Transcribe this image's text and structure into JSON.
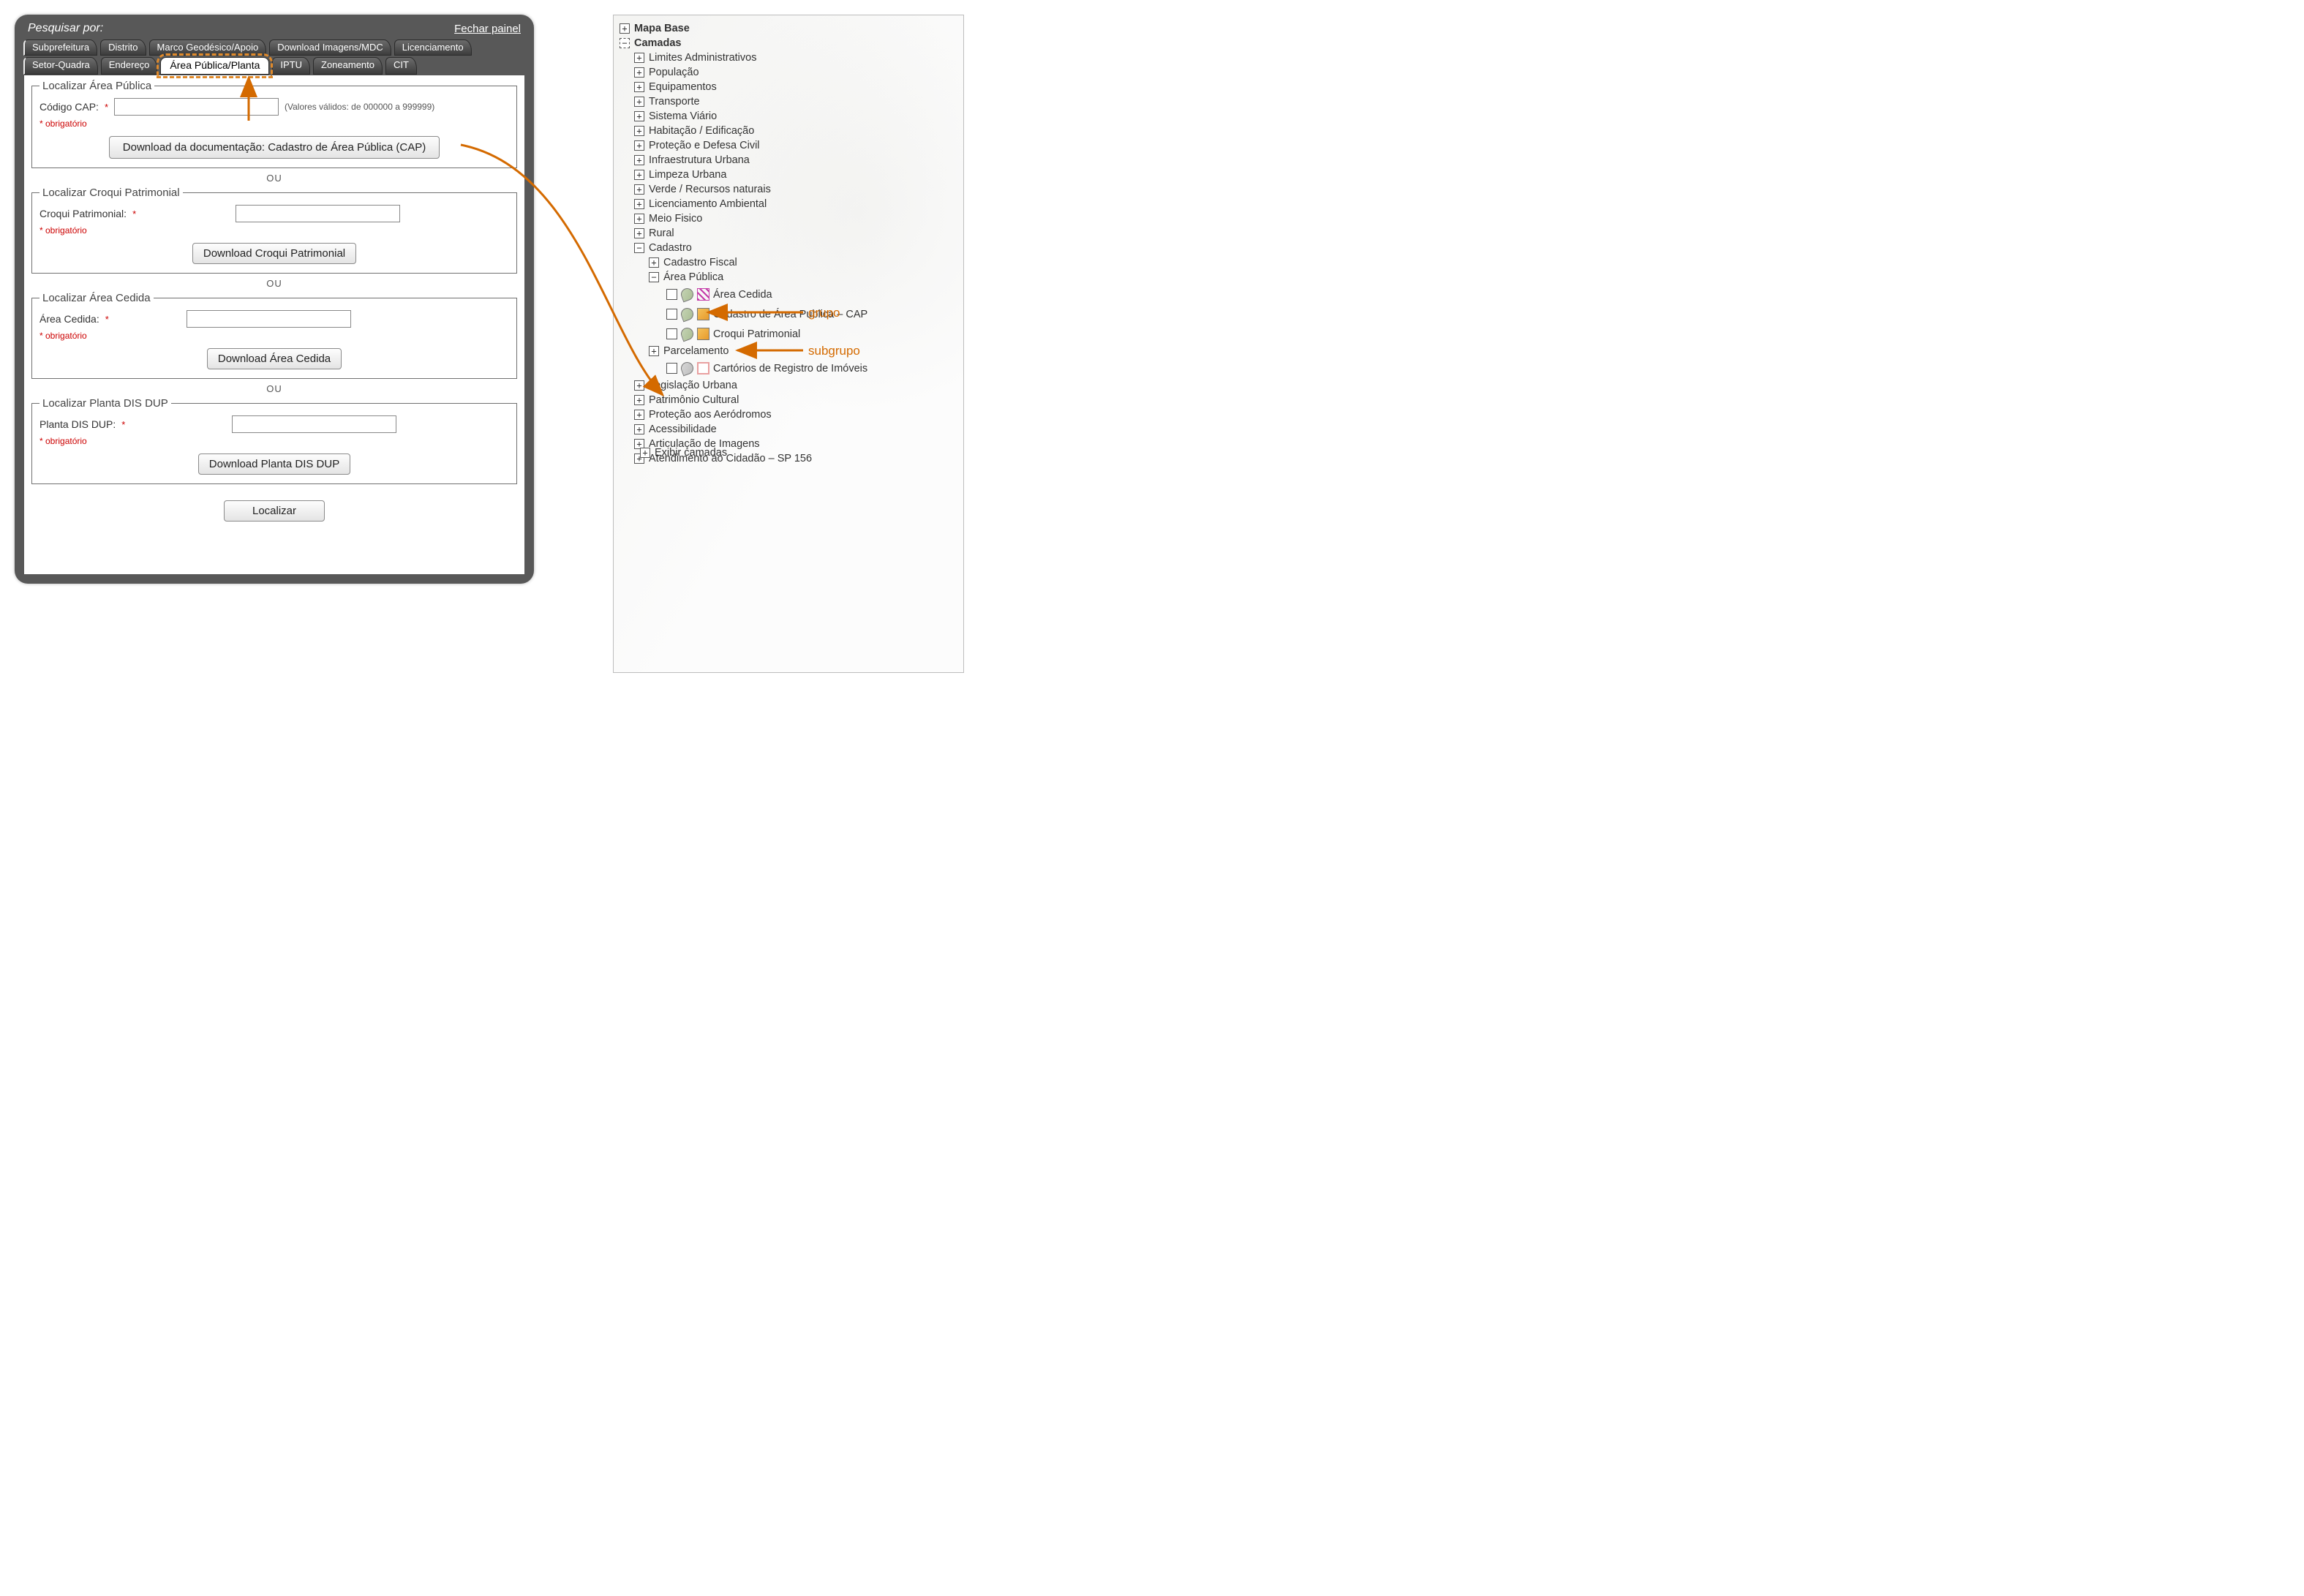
{
  "colors": {
    "panel_bg": "#585858",
    "accent_orange": "#e08a2b",
    "annotation_text": "#d46a00",
    "required_red": "#cc0000",
    "border_grey": "#8a8a8a"
  },
  "panel": {
    "search_label": "Pesquisar por:",
    "close_label": "Fechar painel",
    "tabs_row1": [
      {
        "key": "subpref",
        "label": "Subprefeitura"
      },
      {
        "key": "distrito",
        "label": "Distrito"
      },
      {
        "key": "marco",
        "label": "Marco Geodésico/Apoio"
      },
      {
        "key": "download",
        "label": "Download Imagens/MDC"
      },
      {
        "key": "licenc",
        "label": "Licenciamento"
      }
    ],
    "tabs_row2": [
      {
        "key": "setor",
        "label": "Setor-Quadra"
      },
      {
        "key": "endereco",
        "label": "Endereço"
      },
      {
        "key": "area",
        "label": "Área Pública/Planta",
        "active": true,
        "highlight": true
      },
      {
        "key": "iptu",
        "label": "IPTU"
      },
      {
        "key": "zoneamento",
        "label": "Zoneamento"
      },
      {
        "key": "cit",
        "label": "CIT"
      }
    ],
    "sections": {
      "cap": {
        "legend": "Localizar Área Pública",
        "field_label": "Código CAP:",
        "required_mark": "*",
        "hint": "(Valores válidos: de 000000 a 999999)",
        "obrig": "* obrigatório",
        "button": "Download da documentação: Cadastro de Área Pública (CAP)"
      },
      "croqui": {
        "legend": "Localizar Croqui Patrimonial",
        "field_label": "Croqui Patrimonial:",
        "required_mark": "*",
        "obrig": "* obrigatório",
        "button": "Download Croqui Patrimonial"
      },
      "cedida": {
        "legend": "Localizar Área Cedida",
        "field_label": "Área Cedida:",
        "required_mark": "*",
        "obrig": "* obrigatório",
        "button": "Download Área Cedida"
      },
      "planta": {
        "legend": "Localizar Planta DIS DUP",
        "field_label": "Planta DIS DUP:",
        "required_mark": "*",
        "obrig": "* obrigatório",
        "button": "Download Planta DIS DUP"
      },
      "ou": "OU",
      "submit": "Localizar"
    }
  },
  "tree": {
    "root1": {
      "label": "Mapa Base",
      "state": "closed"
    },
    "root2": {
      "label": "Camadas",
      "state": "open_dashed"
    },
    "groups_top": [
      "Limites Administrativos",
      "População",
      "Equipamentos",
      "Transporte",
      "Sistema Viário",
      "Habitação / Edificação",
      "Proteção e Defesa Civil",
      "Infraestrutura Urbana",
      "Limpeza Urbana",
      "Verde / Recursos naturais",
      "Licenciamento Ambiental",
      "Meio Fisico",
      "Rural"
    ],
    "cadastro": {
      "label": "Cadastro",
      "state": "open",
      "children": [
        {
          "type": "group",
          "label": "Cadastro Fiscal",
          "state": "closed"
        },
        {
          "type": "group",
          "label": "Área Pública",
          "state": "open",
          "children": [
            {
              "type": "layer",
              "label": "Área Cedida",
              "icons": [
                "tag",
                "hatch"
              ]
            },
            {
              "type": "layer",
              "label": "Cadastro de Área Publica – CAP",
              "icons": [
                "tag",
                "orange"
              ],
              "pointed": true
            },
            {
              "type": "layer",
              "label": "Croqui Patrimonial",
              "icons": [
                "tag",
                "orange"
              ]
            }
          ]
        },
        {
          "type": "group",
          "label": "Parcelamento",
          "state": "closed"
        },
        {
          "type": "layer",
          "label": "Cartórios de Registro de Imóveis",
          "icons": [
            "grey",
            "pinkoutline"
          ],
          "indent": 3
        }
      ]
    },
    "groups_bottom": [
      "Legislação Urbana",
      "Patrimônio Cultural",
      "Proteção aos Aeródromos",
      "Acessibilidade",
      "Articulação de Imagens",
      "Atendimento ao Cidadão – SP 156"
    ],
    "show_layers": "Exibir camadas"
  },
  "annotations": {
    "grupo": "grupo",
    "subgrupo": "subgrupo"
  }
}
